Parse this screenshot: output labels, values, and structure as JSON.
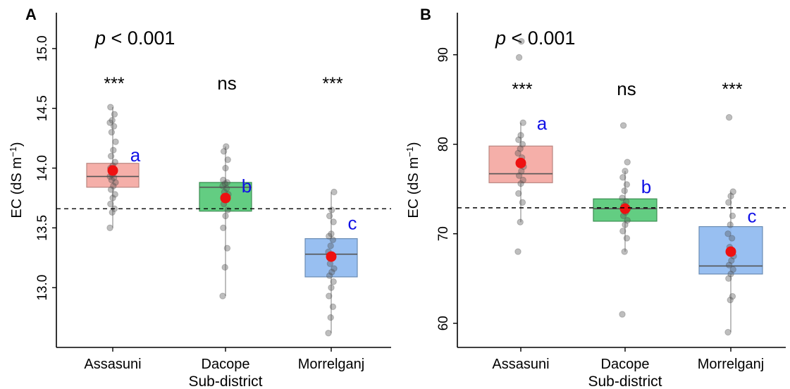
{
  "colors": {
    "assasuni_fill": "#f4a6a0",
    "dacope_fill": "#52c874",
    "morrelganj_fill": "#8db8ef",
    "mean_point": "#ee1111",
    "letter": "#1010e6",
    "jitter": "#555555"
  },
  "chart_data": [
    {
      "panel_label": "A",
      "type": "box",
      "categories": [
        "Assasuni",
        "Dacope",
        "Morrelganj"
      ],
      "xlabel": "Sub-district",
      "ylabel_main": "EC (dS m",
      "ylabel_sup": "−1",
      "ylabel_close": ")",
      "ylim": [
        12.5,
        15.3
      ],
      "yticks": [
        13.0,
        13.5,
        14.0,
        14.5,
        15.0
      ],
      "ytick_labels": [
        "13.0",
        "13.5",
        "14.0",
        "14.5",
        "15.0"
      ],
      "reference_line": 13.66,
      "pvalue": {
        "p": "p",
        "rest": " < 0.001"
      },
      "boxes": [
        {
          "q1": 13.84,
          "median": 13.93,
          "q3": 14.04,
          "whisker_low": 13.5,
          "whisker_high": 14.51,
          "mean": 13.98,
          "significance": "***",
          "letter": "a",
          "points": [
            13.5,
            13.63,
            13.66,
            13.7,
            13.75,
            13.78,
            13.82,
            13.85,
            13.88,
            13.9,
            13.92,
            13.93,
            13.95,
            13.97,
            14.0,
            14.02,
            14.05,
            14.1,
            14.15,
            14.22,
            14.3,
            14.35,
            14.38,
            14.4,
            14.45,
            14.51
          ]
        },
        {
          "q1": 13.64,
          "median": 13.84,
          "q3": 13.88,
          "whisker_low": 12.93,
          "whisker_high": 14.18,
          "mean": 13.75,
          "significance": "ns",
          "letter": "b",
          "points": [
            12.93,
            13.17,
            13.33,
            13.5,
            13.6,
            13.65,
            13.7,
            13.75,
            13.78,
            13.8,
            13.83,
            13.85,
            13.87,
            13.88,
            13.9,
            14.0,
            14.07,
            14.14,
            14.18
          ]
        },
        {
          "q1": 13.09,
          "median": 13.28,
          "q3": 13.41,
          "whisker_low": 12.62,
          "whisker_high": 13.8,
          "mean": 13.26,
          "significance": "***",
          "letter": "c",
          "points": [
            12.62,
            12.75,
            12.84,
            12.93,
            13.0,
            13.05,
            13.1,
            13.13,
            13.16,
            13.2,
            13.25,
            13.3,
            13.35,
            13.4,
            13.43,
            13.45,
            13.55,
            13.6,
            13.65,
            13.8
          ]
        }
      ]
    },
    {
      "panel_label": "B",
      "type": "box",
      "categories": [
        "Assasuni",
        "Dacope",
        "Morrelganj"
      ],
      "xlabel": "Sub-district",
      "ylabel_main": "EC (dS m",
      "ylabel_sup": "−1",
      "ylabel_close": ")",
      "ylim": [
        57.3,
        94.7
      ],
      "yticks": [
        60,
        70,
        80,
        90
      ],
      "ytick_labels": [
        "60",
        "70",
        "80",
        "90"
      ],
      "reference_line": 72.9,
      "pvalue": {
        "p": "p",
        "rest": " < 0.001"
      },
      "boxes": [
        {
          "q1": 75.7,
          "median": 76.7,
          "q3": 79.8,
          "whisker_low": 71.3,
          "whisker_high": 82.4,
          "mean": 77.9,
          "significance": "***",
          "letter": "a",
          "points": [
            68.0,
            71.3,
            73.5,
            74.5,
            75.6,
            76.0,
            76.5,
            77.0,
            77.5,
            78.0,
            78.5,
            79.0,
            79.5,
            80.0,
            80.5,
            81.0,
            82.4,
            89.7,
            91.5
          ]
        },
        {
          "q1": 71.4,
          "median": 72.8,
          "q3": 73.9,
          "whisker_low": 68.0,
          "whisker_high": 77.0,
          "mean": 72.8,
          "significance": "ns",
          "letter": "b",
          "points": [
            61.0,
            68.0,
            69.5,
            70.3,
            71.0,
            71.5,
            72.0,
            72.4,
            72.8,
            73.2,
            73.6,
            74.0,
            74.8,
            75.5,
            76.3,
            77.0,
            78.0,
            82.1
          ]
        },
        {
          "q1": 65.5,
          "median": 66.4,
          "q3": 70.8,
          "whisker_low": 59.0,
          "whisker_high": 74.7,
          "mean": 68.0,
          "significance": "***",
          "letter": "c",
          "points": [
            59.0,
            62.6,
            63.0,
            65.0,
            65.5,
            66.0,
            66.5,
            67.0,
            67.5,
            68.5,
            69.5,
            70.0,
            71.0,
            72.0,
            73.5,
            74.2,
            74.7,
            83.0
          ]
        }
      ]
    }
  ]
}
